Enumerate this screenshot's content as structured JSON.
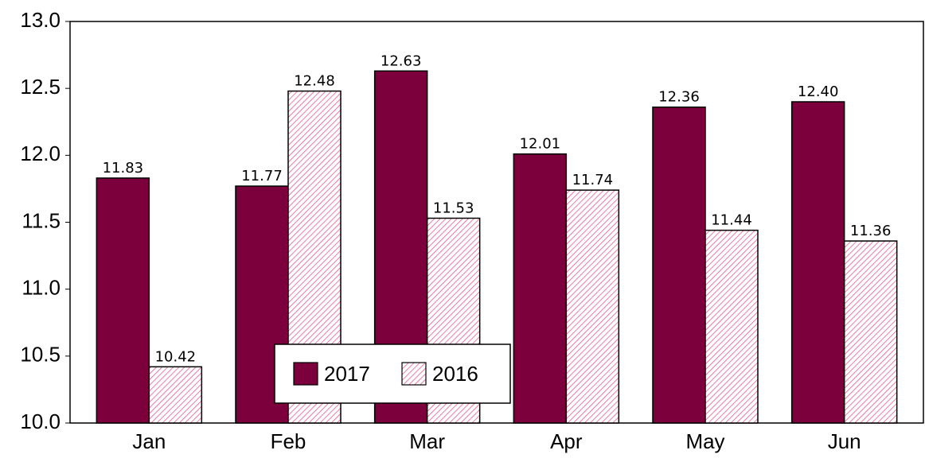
{
  "chart_data": {
    "type": "bar",
    "categories": [
      "Jan",
      "Feb",
      "Mar",
      "Apr",
      "May",
      "Jun"
    ],
    "series": [
      {
        "name": "2017",
        "color": "#7b003b",
        "pattern": "solid",
        "values": [
          11.83,
          11.77,
          12.63,
          12.01,
          12.36,
          12.4
        ],
        "value_labels": [
          "11.83",
          "11.77",
          "12.63",
          "12.01",
          "12.36",
          "12.40"
        ]
      },
      {
        "name": "2016",
        "color": "#e8508a",
        "pattern": "hatch",
        "values": [
          10.42,
          12.48,
          11.53,
          11.74,
          11.44,
          11.36
        ],
        "value_labels": [
          "10.42",
          "12.48",
          "11.53",
          "11.74",
          "11.44",
          "11.36"
        ]
      }
    ],
    "ylim": [
      10,
      13
    ],
    "yticks": [
      {
        "value": 10,
        "label": "10.0"
      },
      10.5,
      {
        "value": 11,
        "label": "11.0"
      },
      11.5,
      {
        "value": 12,
        "label": "12.0"
      },
      12.5,
      {
        "value": 13,
        "label": "13.0"
      }
    ],
    "grid": false,
    "legend": "lower center"
  }
}
